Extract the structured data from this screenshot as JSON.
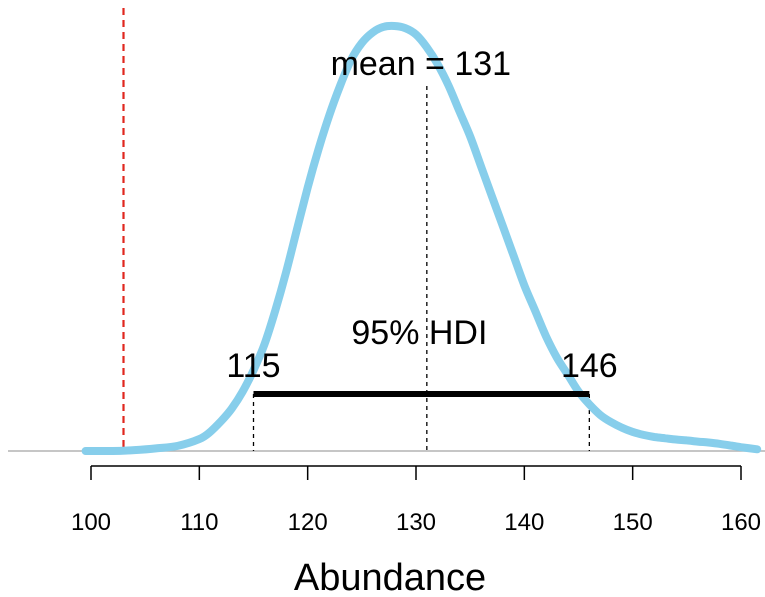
{
  "chart_data": {
    "type": "line",
    "xlabel": "Abundance",
    "ylabel": "",
    "title": "",
    "xlim": [
      100,
      160
    ],
    "ylim": [
      0,
      1
    ],
    "grid": false,
    "x_ticks": [
      100,
      110,
      120,
      130,
      140,
      150,
      160
    ],
    "series": [
      {
        "color": "#87ceeb",
        "x": [
          99.5,
          102,
          104,
          106,
          108,
          110,
          111,
          112,
          113,
          114,
          115,
          116,
          117,
          118,
          119,
          120,
          121,
          122,
          123,
          124,
          125,
          126,
          127,
          128,
          129,
          130,
          131,
          132,
          133,
          134,
          135,
          136,
          137,
          138,
          139,
          140,
          141,
          142,
          143,
          144,
          145,
          146,
          147,
          148,
          149,
          150,
          151,
          152,
          153,
          154,
          155,
          156,
          157,
          158,
          159,
          160,
          161.5
        ],
        "y": [
          0.0,
          0.0,
          0.002,
          0.006,
          0.012,
          0.028,
          0.045,
          0.07,
          0.1,
          0.14,
          0.19,
          0.25,
          0.33,
          0.42,
          0.52,
          0.62,
          0.71,
          0.79,
          0.86,
          0.92,
          0.96,
          0.985,
          0.998,
          1.0,
          0.995,
          0.98,
          0.95,
          0.91,
          0.86,
          0.8,
          0.74,
          0.67,
          0.6,
          0.53,
          0.46,
          0.39,
          0.33,
          0.27,
          0.22,
          0.18,
          0.14,
          0.11,
          0.085,
          0.068,
          0.055,
          0.045,
          0.038,
          0.033,
          0.03,
          0.027,
          0.025,
          0.022,
          0.02,
          0.017,
          0.013,
          0.009,
          0.004
        ]
      }
    ],
    "reference_line": {
      "x": 103,
      "color": "#e0271e"
    },
    "mean": {
      "value": 131,
      "label": "mean = 131"
    },
    "hdi": {
      "low": 115,
      "high": 146,
      "label": "95% HDI",
      "low_label": "115",
      "high_label": "146"
    }
  }
}
